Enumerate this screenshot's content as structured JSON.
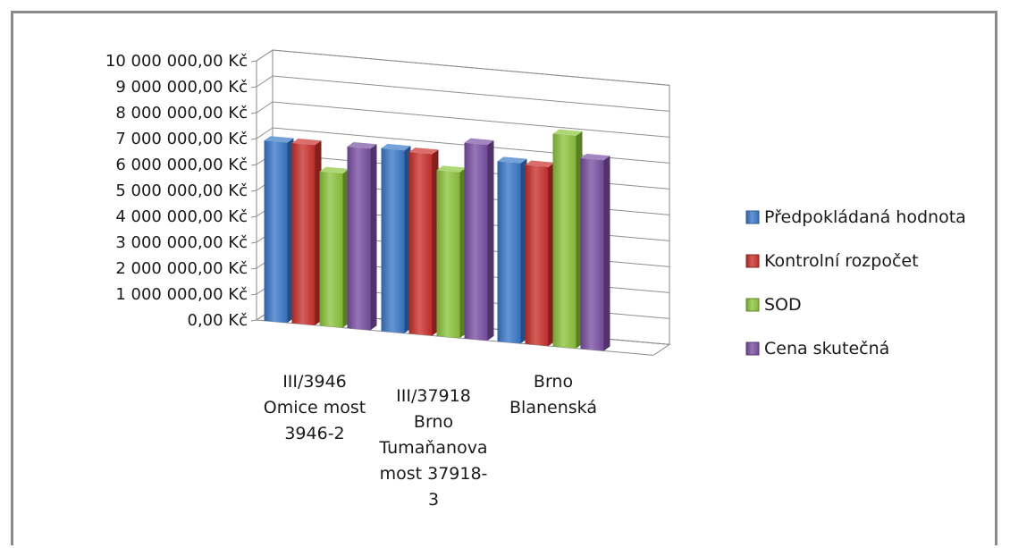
{
  "chart_data": {
    "type": "bar",
    "title": "",
    "xlabel": "",
    "ylabel": "",
    "ylim": [
      0,
      10000000
    ],
    "y_tick_step": 1000000,
    "y_tick_labels": [
      "0,00 Kč",
      "1 000 000,00 Kč",
      "2 000 000,00 Kč",
      "3 000 000,00 Kč",
      "4 000 000,00 Kč",
      "5 000 000,00 Kč",
      "6 000 000,00 Kč",
      "7 000 000,00 Kč",
      "8 000 000,00 Kč",
      "9 000 000,00 Kč",
      "10 000 000,00 Kč"
    ],
    "grid": true,
    "legend_position": "right",
    "style": "3d-clustered-column",
    "categories": [
      [
        "III/3946",
        "Omice most",
        "3946-2"
      ],
      [
        "III/37918",
        "Brno",
        "Tumaňanova",
        "most 37918-",
        "3"
      ],
      [
        "Brno",
        "Blanenská"
      ]
    ],
    "series": [
      {
        "name": "Předpokládaná hodnota",
        "color": "#3a78c9",
        "values": [
          6950000,
          7050000,
          6950000
        ]
      },
      {
        "name": "Kontrolní rozpočet",
        "color": "#c9302c",
        "values": [
          6950000,
          7000000,
          6900000
        ]
      },
      {
        "name": "SOD",
        "color": "#8cc43c",
        "values": [
          5950000,
          6400000,
          8200000
        ]
      },
      {
        "name": "Cena skutečná",
        "color": "#7a4fa3",
        "values": [
          7000000,
          7550000,
          7350000
        ]
      }
    ]
  }
}
